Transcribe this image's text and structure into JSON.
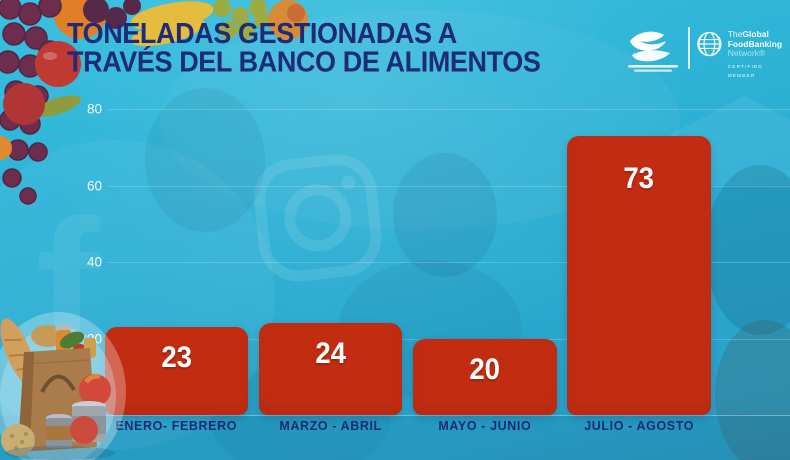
{
  "header": {
    "title_line1": "TONELADAS GESTIONADAS A",
    "title_line2": "TRAVÉS DEL BANCO DE ALIMENTOS"
  },
  "logos": {
    "gfn": {
      "the": "The",
      "global": "Global",
      "foodbanking": "FoodBanking",
      "network": "Network®",
      "certified": "CERTIFIED MEMBER"
    },
    "icons": {
      "foodbank": "bird-emblem-icon",
      "gfn": "wireframe-globe-icon"
    }
  },
  "chart_data": {
    "type": "bar",
    "title": "Toneladas gestionadas a través del banco de alimentos",
    "categories": [
      "ENERO- FEBRERO",
      "MARZO - ABRIL",
      "MAYO - JUNIO",
      "JULIO - AGOSTO"
    ],
    "values": [
      23,
      24,
      20,
      73
    ],
    "yticks": [
      20,
      40,
      60,
      80
    ],
    "ylim": [
      0,
      80
    ],
    "grid": true,
    "legend": null,
    "bar_color": "#c22d12",
    "value_label_color": "#ffffff",
    "xlabel": "",
    "ylabel": ""
  },
  "colors": {
    "background_teal": "#2bacd0",
    "title_navy": "#1f2b76",
    "bar_red": "#c22d12",
    "tick_white": "#ffffff"
  }
}
